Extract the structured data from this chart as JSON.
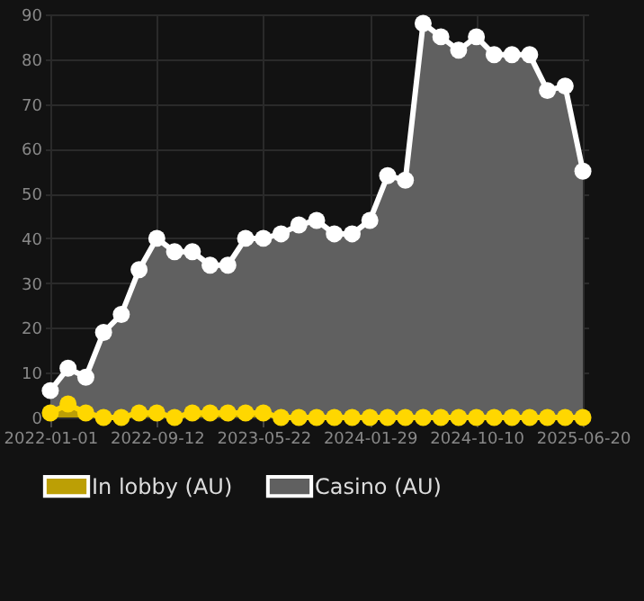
{
  "chart_data": {
    "type": "area",
    "categories": [
      "2022-01-01",
      null,
      null,
      null,
      null,
      null,
      "2022-09-12",
      null,
      null,
      null,
      null,
      null,
      "2023-05-22",
      null,
      null,
      null,
      null,
      null,
      "2024-01-29",
      null,
      null,
      null,
      null,
      null,
      "2024-10-10",
      null,
      null,
      null,
      null,
      null,
      "2025-06-20"
    ],
    "series": [
      {
        "name": "In lobby (AU)",
        "color": "#ffd700",
        "values": [
          1,
          3,
          1,
          0,
          0,
          1,
          1,
          0,
          1,
          1,
          1,
          1,
          1,
          0,
          0,
          0,
          0,
          0,
          0,
          0,
          0,
          0,
          0,
          0,
          0,
          0,
          0,
          0,
          0,
          0,
          0
        ]
      },
      {
        "name": "Casino (AU)",
        "color": "#ffffff",
        "values": [
          6,
          11,
          9,
          19,
          23,
          33,
          40,
          37,
          37,
          34,
          34,
          40,
          40,
          41,
          43,
          44,
          41,
          41,
          44,
          54,
          53,
          88,
          85,
          82,
          85,
          81,
          81,
          81,
          73,
          74,
          55
        ]
      }
    ],
    "ylim": [
      0,
      90
    ],
    "yticks": [
      0,
      10,
      20,
      30,
      40,
      50,
      60,
      70,
      80,
      90
    ],
    "grid": true,
    "legend": "bottom",
    "marker": "circle",
    "line_style": "solid"
  }
}
